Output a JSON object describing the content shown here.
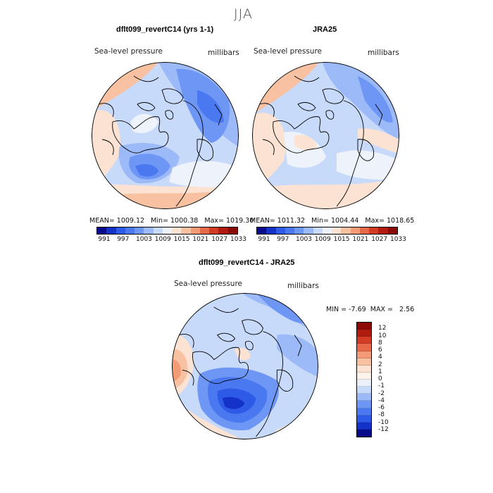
{
  "header": {
    "season": "JJA"
  },
  "panels": [
    {
      "id": "model",
      "title": "dflt099_revertC14 (yrs 1-1)",
      "field_label": "Sea-level pressure",
      "units_label": "millibars",
      "stats": {
        "mean_label": "MEAN=",
        "mean": "1009.12",
        "min_label": "Min=",
        "min": "1000.38",
        "max_label": "Max=",
        "max": "1019.30"
      },
      "colorbar_ticks": [
        "991",
        "997",
        "1003",
        "1009",
        "1015",
        "1021",
        "1027",
        "1033"
      ]
    },
    {
      "id": "obs",
      "title": "JRA25",
      "field_label": "Sea-level pressure",
      "units_label": "millibars",
      "stats": {
        "mean_label": "MEAN=",
        "mean": "1011.32",
        "min_label": "Min=",
        "min": "1004.44",
        "max_label": "Max=",
        "max": "1018.65"
      },
      "colorbar_ticks": [
        "991",
        "997",
        "1003",
        "1009",
        "1015",
        "1021",
        "1027",
        "1033"
      ]
    }
  ],
  "diff_panel": {
    "title": "dflt099_revertC14 - JRA25",
    "field_label": "Sea-level pressure",
    "units_label": "millibars",
    "stats": {
      "min_label": "MIN =",
      "min": "-7.69",
      "max_label": "MAX =",
      "max": "2.56"
    },
    "colorbar_ticks": [
      "12",
      "10",
      "8",
      "6",
      "4",
      "2",
      "1",
      "0",
      "-1",
      "-2",
      "-4",
      "-6",
      "-8",
      "-10",
      "-12"
    ]
  },
  "colors": {
    "abs_scale": [
      "#0a0a8c",
      "#1432c8",
      "#2d5ae6",
      "#4a78f0",
      "#6e96f5",
      "#9cb9f8",
      "#c8daf9",
      "#eef3fb",
      "#fbe2d2",
      "#f7c1a2",
      "#f39a76",
      "#e8684a",
      "#d23c25",
      "#b01d10",
      "#8c0a05"
    ],
    "diff_scale": [
      "#8c0a05",
      "#b01d10",
      "#d23c25",
      "#e8684a",
      "#f39a76",
      "#f7c1a2",
      "#fbe2d2",
      "#fdf3ea",
      "#eaf1fb",
      "#c8daf9",
      "#9cb9f8",
      "#6e96f5",
      "#4a78f0",
      "#2d5ae6",
      "#1432c8",
      "#0a0a8c"
    ]
  }
}
